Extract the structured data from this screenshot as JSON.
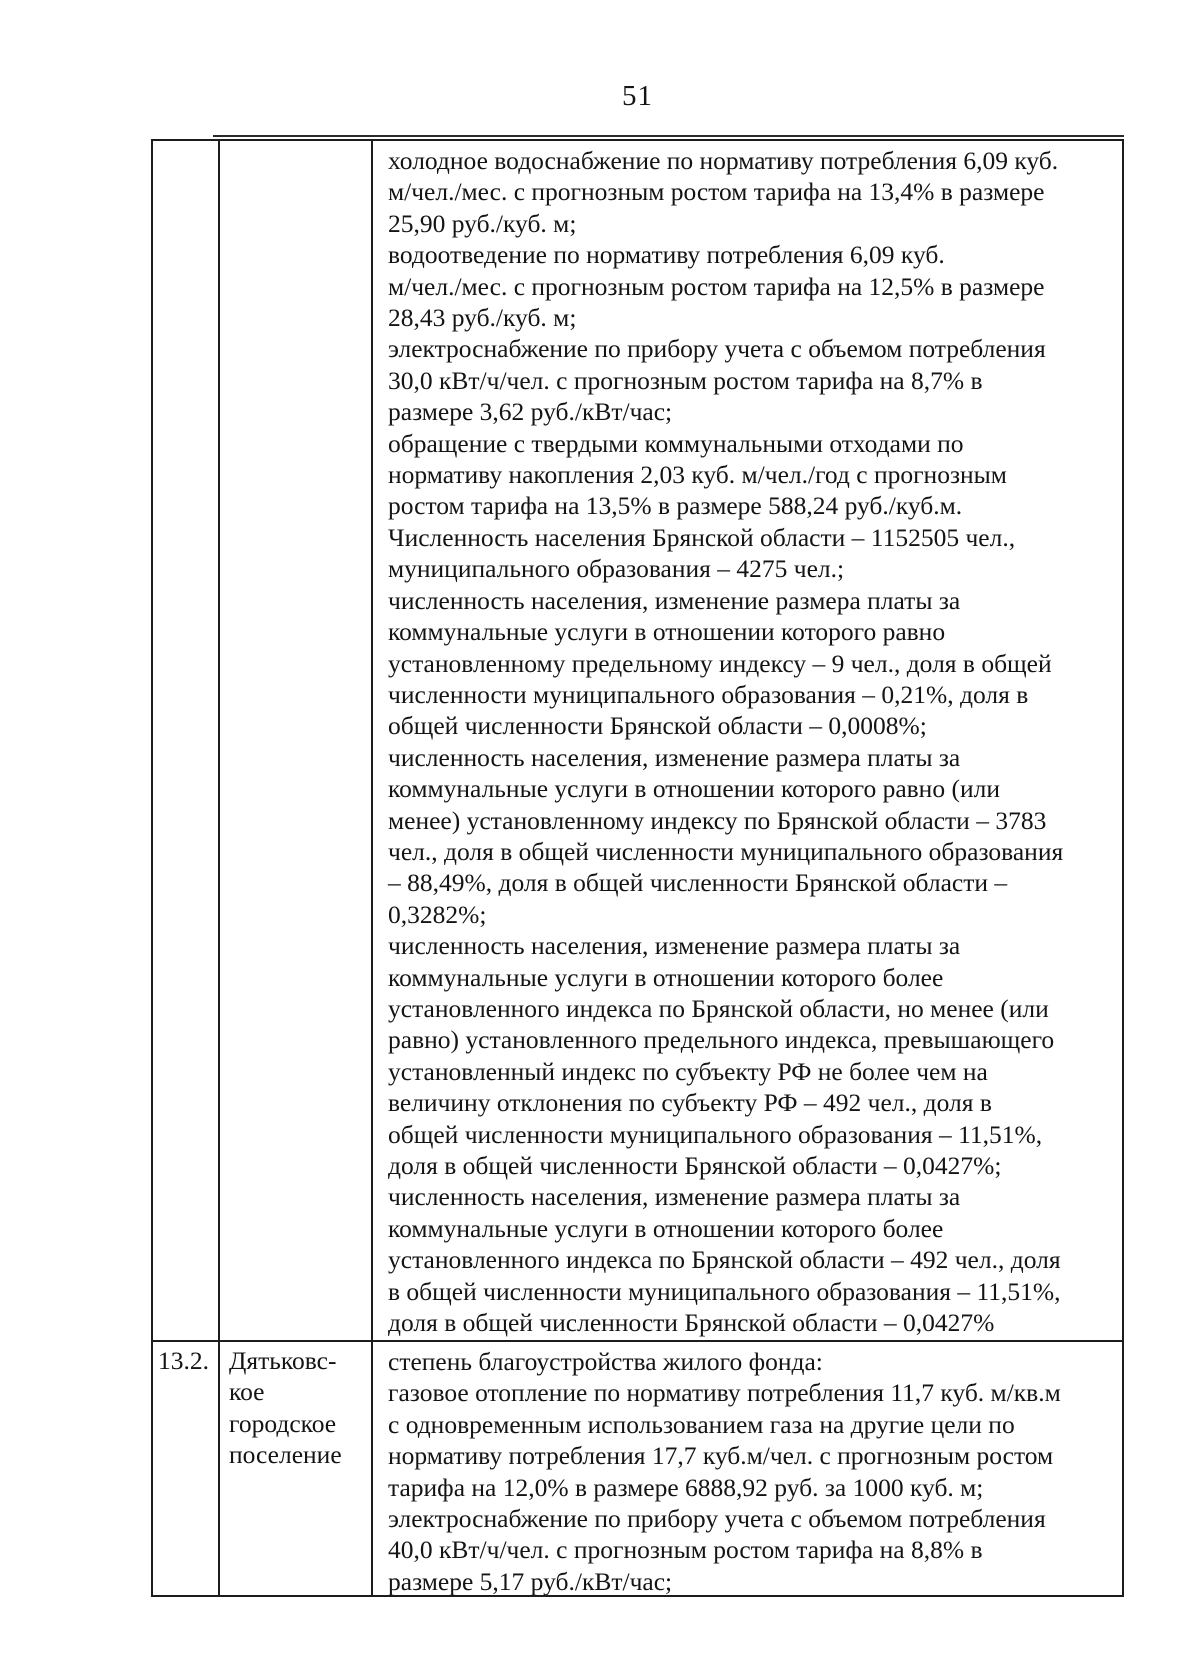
{
  "page": {
    "number": "51"
  },
  "table": {
    "rows": [
      {
        "num": "",
        "name_lines": [],
        "content_lines": [
          "холодное водоснабжение по нормативу потребления 6,09 куб.",
          "м/чел./мес. с прогнозным ростом тарифа на 13,4% в размере",
          "25,90 руб./куб. м;",
          "водоотведение по нормативу потребления 6,09 куб.",
          "м/чел./мес. с прогнозным ростом тарифа на 12,5% в размере",
          "28,43 руб./куб. м;",
          "электроснабжение по прибору учета с объемом потребления",
          "30,0 кВт/ч/чел. с прогнозным ростом тарифа на 8,7% в",
          "размере 3,62 руб./кВт/час;",
          "обращение с твердыми коммунальными отходами по",
          "нормативу накопления 2,03 куб. м/чел./год с прогнозным",
          "ростом тарифа на 13,5% в размере 588,24 руб./куб.м.",
          "Численность населения Брянской области – 1152505 чел.,",
          "муниципального образования – 4275 чел.;",
          "численность населения, изменение размера платы за",
          "коммунальные услуги в отношении которого равно",
          "установленному предельному индексу – 9 чел., доля в общей",
          "численности муниципального образования – 0,21%, доля в",
          "общей численности Брянской области – 0,0008%;",
          "численность населения, изменение размера платы за",
          "коммунальные услуги в отношении которого равно (или",
          "менее) установленному индексу по Брянской области – 3783",
          "чел., доля в общей численности муниципального образования",
          "– 88,49%, доля в общей численности Брянской области –",
          "0,3282%;",
          "численность населения, изменение размера платы за",
          "коммунальные услуги в отношении которого более",
          "установленного индекса по Брянской области, но менее (или",
          "равно) установленного предельного индекса, превышающего",
          "установленный индекс по субъекту РФ не более чем на",
          "величину отклонения по субъекту РФ – 492 чел., доля в",
          "общей численности муниципального образования – 11,51%,",
          "доля в общей численности Брянской области – 0,0427%;",
          "численность населения, изменение размера платы за",
          "коммунальные услуги в отношении которого более",
          "установленного индекса по Брянской области – 492 чел., доля",
          "в общей численности муниципального образования – 11,51%,",
          "доля в общей численности Брянской области – 0,0427%"
        ]
      },
      {
        "num": "13.2.",
        "name_lines": [
          "Дятьковс-",
          "кое",
          "городское",
          "поселение"
        ],
        "content_lines": [
          "степень благоустройства жилого фонда:",
          "газовое отопление по нормативу потребления 11,7 куб. м/кв.м",
          "с одновременным использованием газа на другие цели по",
          "нормативу потребления 17,7 куб.м/чел. с прогнозным ростом",
          "тарифа на 12,0% в размере 6888,92 руб. за 1000 куб. м;",
          "электроснабжение по прибору учета с объемом потребления",
          "40,0 кВт/ч/чел. с прогнозным ростом тарифа на 8,8% в",
          "размере 5,17 руб./кВт/час;"
        ]
      }
    ]
  }
}
